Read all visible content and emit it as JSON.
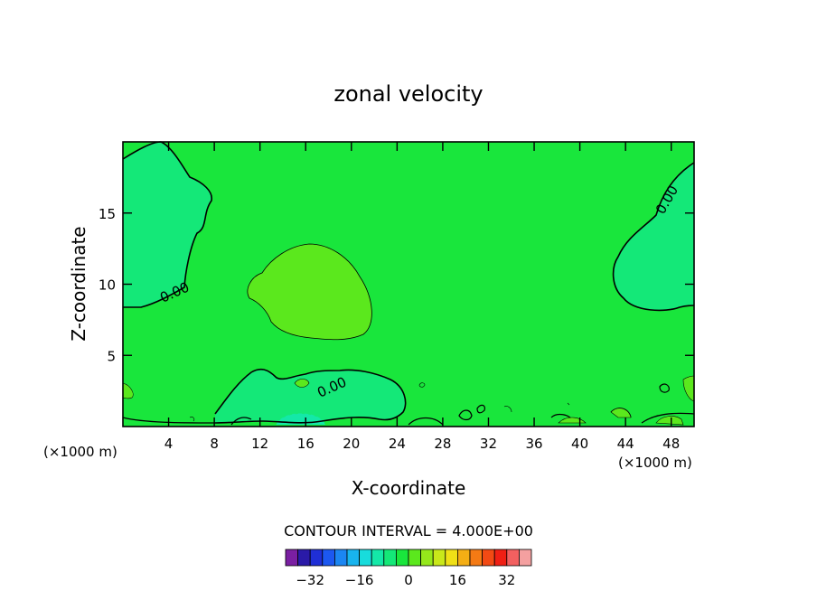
{
  "chart_data": {
    "type": "heatmap",
    "title": "zonal velocity",
    "xlabel": "X-coordinate",
    "ylabel": "Z-coordinate",
    "x_unit": "(×1000 m)",
    "z_unit": "(×1000 m)",
    "x_ticks": [
      4,
      8,
      12,
      16,
      20,
      24,
      28,
      32,
      36,
      40,
      44,
      48
    ],
    "z_ticks": [
      5,
      10,
      15
    ],
    "xlim": [
      0,
      50
    ],
    "ylim": [
      0,
      20
    ],
    "contour_label": "0.00",
    "contour_interval_text": "CONTOUR INTERVAL = 4.000E+00",
    "colorbar": {
      "levels": [
        -36,
        -32,
        -28,
        -24,
        -20,
        -16,
        -12,
        -8,
        -4,
        0,
        4,
        8,
        12,
        16,
        20,
        24,
        28,
        32,
        36
      ],
      "tick_values": [
        -32,
        -16,
        0,
        16,
        32
      ],
      "colors": [
        "#7a1fa2",
        "#2a1aa8",
        "#1f2fd6",
        "#1c58f0",
        "#1b86f2",
        "#18b4ee",
        "#18dcdc",
        "#14e8a8",
        "#14e878",
        "#19e63c",
        "#5be81d",
        "#95e81b",
        "#c9e81a",
        "#f0e016",
        "#f4ae14",
        "#f47a14",
        "#f24a14",
        "#f01f14",
        "#f26060",
        "#f4a0a0"
      ]
    },
    "regions": [
      {
        "name": "background",
        "value_range": [
          0,
          4
        ],
        "color": "#19e63c"
      },
      {
        "name": "upper-left negative cell",
        "value_range": [
          -4,
          0
        ],
        "color": "#14e878"
      },
      {
        "name": "upper-right negative cell",
        "value_range": [
          -4,
          0
        ],
        "color": "#14e878"
      },
      {
        "name": "central positive cell",
        "value_range": [
          4,
          8
        ],
        "color": "#5be81d"
      },
      {
        "name": "lower negative cell",
        "value_range": [
          -4,
          0
        ],
        "color": "#14e878"
      },
      {
        "name": "near-surface minimum",
        "value_range": [
          -8,
          -4
        ],
        "color": "#14e8a8"
      }
    ]
  }
}
